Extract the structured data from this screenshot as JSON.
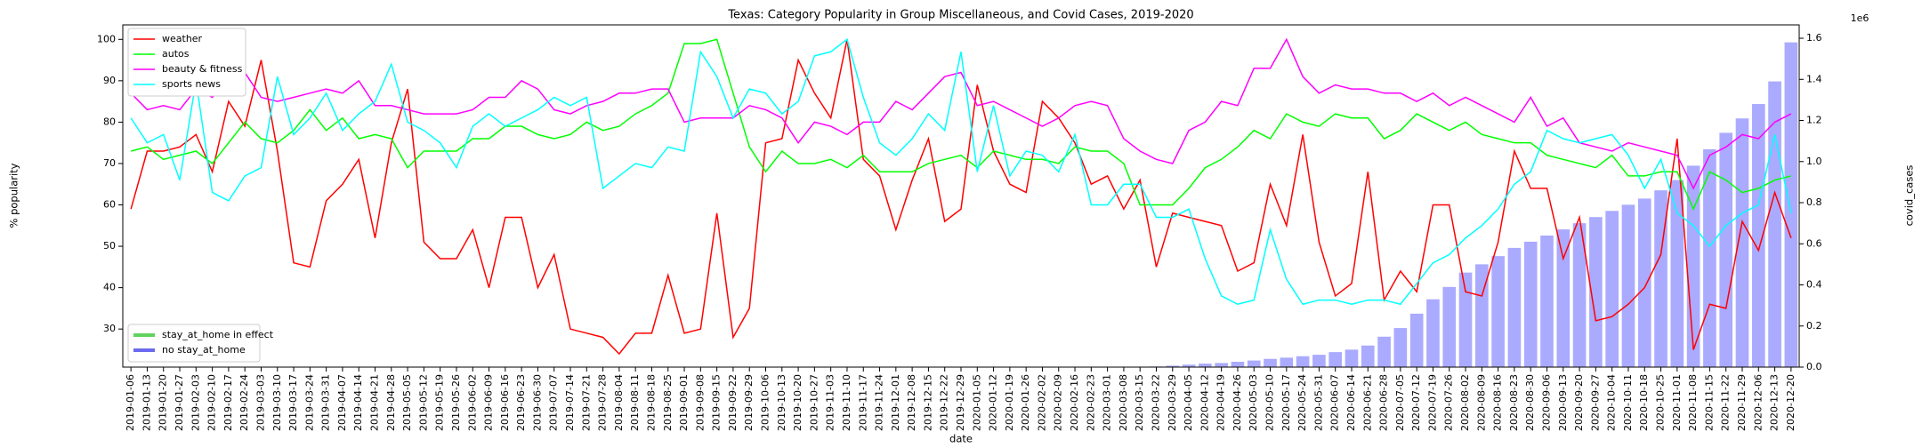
{
  "chart_data": {
    "type": "line",
    "title": "Texas: Category Popularity in Group Miscellaneous, and Covid Cases, 2019-2020",
    "x_label": "date",
    "y_label": "% popularity",
    "y2_label": "covid_cases",
    "y2_offset_label": "1e6",
    "categories": [
      "2019-01-06",
      "2019-01-13",
      "2019-01-20",
      "2019-01-27",
      "2019-02-03",
      "2019-02-10",
      "2019-02-17",
      "2019-02-24",
      "2019-03-03",
      "2019-03-10",
      "2019-03-17",
      "2019-03-24",
      "2019-03-31",
      "2019-04-07",
      "2019-04-14",
      "2019-04-21",
      "2019-04-28",
      "2019-05-05",
      "2019-05-12",
      "2019-05-19",
      "2019-05-26",
      "2019-06-02",
      "2019-06-09",
      "2019-06-16",
      "2019-06-23",
      "2019-06-30",
      "2019-07-07",
      "2019-07-14",
      "2019-07-21",
      "2019-07-28",
      "2019-08-04",
      "2019-08-11",
      "2019-08-18",
      "2019-08-25",
      "2019-09-01",
      "2019-09-08",
      "2019-09-15",
      "2019-09-22",
      "2019-09-29",
      "2019-10-06",
      "2019-10-13",
      "2019-10-20",
      "2019-10-27",
      "2019-11-03",
      "2019-11-10",
      "2019-11-17",
      "2019-11-24",
      "2019-12-01",
      "2019-12-08",
      "2019-12-15",
      "2019-12-22",
      "2019-12-29",
      "2020-01-05",
      "2020-01-12",
      "2020-01-19",
      "2020-01-26",
      "2020-02-02",
      "2020-02-09",
      "2020-02-16",
      "2020-02-23",
      "2020-03-01",
      "2020-03-08",
      "2020-03-15",
      "2020-03-22",
      "2020-03-29",
      "2020-04-05",
      "2020-04-12",
      "2020-04-19",
      "2020-04-26",
      "2020-05-03",
      "2020-05-10",
      "2020-05-17",
      "2020-05-24",
      "2020-05-31",
      "2020-06-07",
      "2020-06-14",
      "2020-06-21",
      "2020-06-28",
      "2020-07-05",
      "2020-07-12",
      "2020-07-19",
      "2020-07-26",
      "2020-08-02",
      "2020-08-09",
      "2020-08-16",
      "2020-08-23",
      "2020-08-30",
      "2020-09-06",
      "2020-09-13",
      "2020-09-20",
      "2020-09-27",
      "2020-10-04",
      "2020-10-11",
      "2020-10-18",
      "2020-10-25",
      "2020-11-01",
      "2020-11-08",
      "2020-11-15",
      "2020-11-22",
      "2020-11-29",
      "2020-12-06",
      "2020-12-13",
      "2020-12-20"
    ],
    "series": [
      {
        "type": "bar",
        "axis": "y2",
        "color": "#aaaaff",
        "values": [
          0,
          0,
          0,
          0,
          0,
          0,
          0,
          0,
          0,
          0,
          0,
          0,
          0,
          0,
          0,
          0,
          0,
          0,
          0,
          0,
          0,
          0,
          0,
          0,
          0,
          0,
          0,
          0,
          0,
          0,
          0,
          0,
          0,
          0,
          0,
          0,
          0,
          0,
          0,
          0,
          0,
          0,
          0,
          0,
          0,
          0,
          0,
          0,
          0,
          0,
          0,
          0,
          0,
          0,
          0,
          0,
          0,
          0,
          0,
          0,
          0,
          0,
          0.001,
          0.003,
          0.007,
          0.012,
          0.017,
          0.02,
          0.026,
          0.032,
          0.04,
          0.046,
          0.053,
          0.06,
          0.073,
          0.085,
          0.105,
          0.148,
          0.19,
          0.26,
          0.33,
          0.39,
          0.46,
          0.5,
          0.54,
          0.58,
          0.61,
          0.64,
          0.67,
          0.7,
          0.73,
          0.76,
          0.79,
          0.82,
          0.86,
          0.91,
          0.98,
          1.06,
          1.14,
          1.21,
          1.28,
          1.39,
          1.58
        ]
      },
      {
        "name": "weather",
        "color": "#ff0000",
        "values": [
          59,
          73,
          73,
          74,
          77,
          68,
          85,
          79,
          95,
          73,
          46,
          45,
          61,
          65,
          71,
          52,
          75,
          88,
          51,
          47,
          47,
          54,
          40,
          57,
          57,
          40,
          48,
          30,
          29,
          28,
          24,
          29,
          29,
          43,
          29,
          30,
          58,
          28,
          35,
          75,
          76,
          95,
          87,
          81,
          100,
          71,
          67,
          54,
          66,
          76,
          56,
          59,
          89,
          73,
          65,
          63,
          85,
          81,
          75,
          65,
          67,
          59,
          66,
          45,
          58,
          57,
          56,
          55,
          44,
          46,
          65,
          55,
          77,
          51,
          38,
          41,
          68,
          37,
          44,
          39,
          60,
          60,
          39,
          38,
          51,
          73,
          64,
          64,
          47,
          57,
          32,
          33,
          36,
          40,
          48,
          76,
          25,
          36,
          35,
          56,
          49,
          63,
          52
        ]
      },
      {
        "name": "autos",
        "color": "#00ff00",
        "values": [
          73,
          74,
          71,
          72,
          73,
          70,
          75,
          80,
          76,
          75,
          78,
          83,
          78,
          81,
          76,
          77,
          76,
          69,
          73,
          73,
          73,
          76,
          76,
          79,
          79,
          77,
          76,
          77,
          80,
          78,
          79,
          82,
          84,
          87,
          99,
          99,
          100,
          87,
          74,
          68,
          73,
          70,
          70,
          71,
          69,
          72,
          68,
          68,
          68,
          70,
          71,
          72,
          69,
          73,
          72,
          71,
          71,
          70,
          74,
          73,
          73,
          70,
          60,
          60,
          60,
          64,
          69,
          71,
          74,
          78,
          76,
          82,
          80,
          79,
          82,
          81,
          81,
          76,
          78,
          82,
          80,
          78,
          80,
          77,
          76,
          75,
          75,
          72,
          71,
          70,
          69,
          72,
          67,
          67,
          68,
          68,
          59,
          68,
          66,
          63,
          64,
          66,
          67
        ]
      },
      {
        "name": "beauty & fitness",
        "color": "#ff00ff",
        "values": [
          87,
          83,
          84,
          83,
          88,
          86,
          90,
          92,
          86,
          85,
          86,
          87,
          88,
          87,
          90,
          84,
          84,
          83,
          82,
          82,
          82,
          83,
          86,
          86,
          90,
          88,
          83,
          82,
          84,
          85,
          87,
          87,
          88,
          88,
          80,
          81,
          81,
          81,
          84,
          83,
          81,
          75,
          80,
          79,
          77,
          80,
          80,
          85,
          83,
          87,
          91,
          92,
          84,
          85,
          83,
          81,
          79,
          81,
          84,
          85,
          84,
          76,
          73,
          71,
          70,
          78,
          80,
          85,
          84,
          93,
          93,
          100,
          91,
          87,
          89,
          88,
          88,
          87,
          87,
          85,
          87,
          84,
          86,
          84,
          82,
          80,
          86,
          79,
          81,
          75,
          74,
          73,
          75,
          74,
          73,
          72,
          64,
          72,
          74,
          77,
          76,
          80,
          82
        ]
      },
      {
        "name": "sports news",
        "color": "#00ffff",
        "values": [
          81,
          75,
          77,
          66,
          90,
          63,
          61,
          67,
          69,
          91,
          77,
          81,
          87,
          78,
          82,
          85,
          94,
          80,
          78,
          75,
          69,
          79,
          82,
          79,
          81,
          83,
          86,
          84,
          86,
          64,
          67,
          70,
          69,
          74,
          73,
          97,
          91,
          81,
          88,
          87,
          82,
          85,
          96,
          97,
          100,
          86,
          75,
          72,
          76,
          82,
          78,
          97,
          68,
          84,
          67,
          73,
          72,
          68,
          77,
          60,
          60,
          65,
          65,
          57,
          57,
          59,
          47,
          38,
          36,
          37,
          54,
          42,
          36,
          37,
          37,
          36,
          37,
          37,
          36,
          41,
          46,
          48,
          52,
          55,
          59,
          65,
          68,
          78,
          76,
          75,
          76,
          77,
          72,
          64,
          71,
          58,
          55,
          50,
          55,
          58,
          60,
          77,
          58
        ]
      }
    ],
    "legend_items": [
      {
        "name": "stay_at_home in effect",
        "color": "#5fd35f"
      },
      {
        "name": "no stay_at_home",
        "color": "#6a6aee"
      }
    ],
    "ylim": [
      20.8,
      103.5
    ],
    "yticks": [
      30,
      40,
      50,
      60,
      70,
      80,
      90,
      100
    ],
    "y2lim": [
      0,
      1.665
    ],
    "y2ticks": [
      {
        "value": 0,
        "label": "0.0"
      },
      {
        "value": 0.2,
        "label": "0.2"
      },
      {
        "value": 0.4,
        "label": "0.4"
      },
      {
        "value": 0.6,
        "label": "0.6"
      },
      {
        "value": 0.8,
        "label": "0.8"
      },
      {
        "value": 1.0,
        "label": "1.0"
      },
      {
        "value": 1.2,
        "label": "1.2"
      },
      {
        "value": 1.4,
        "label": "1.4"
      },
      {
        "value": 1.6,
        "label": "1.6"
      }
    ],
    "grid": false
  }
}
